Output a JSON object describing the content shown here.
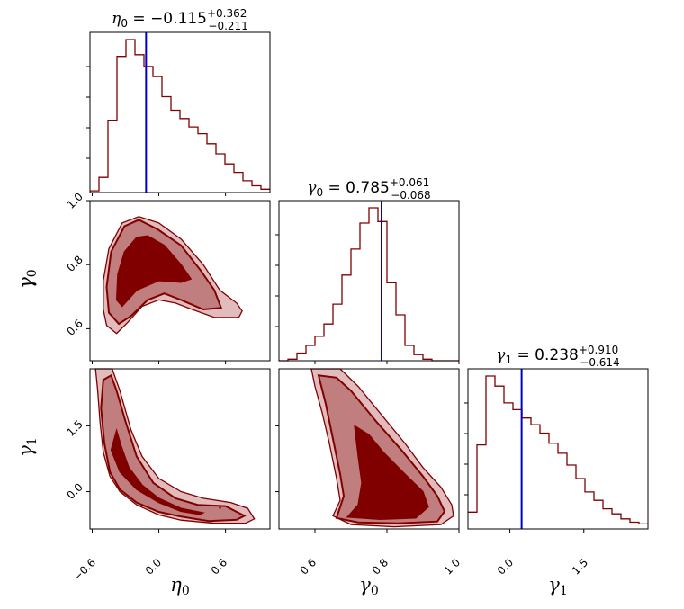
{
  "chart_data": {
    "type": "corner",
    "parameters": [
      {
        "symbol": "η",
        "sub": "0",
        "median": "−0.115",
        "plus": "+0.362",
        "minus": "−0.211",
        "ticks": [
          "−0.6",
          "0.0",
          "0.6"
        ]
      },
      {
        "symbol": "γ",
        "sub": "0",
        "median": "0.785",
        "plus": "+0.061",
        "minus": "−0.068",
        "ticks": [
          "0.6",
          "0.8",
          "1.0"
        ]
      },
      {
        "symbol": "γ",
        "sub": "1",
        "median": "0.238",
        "plus": "+0.910",
        "minus": "−0.614",
        "ticks": [
          "0.0",
          "1.5"
        ]
      }
    ],
    "ranges": {
      "eta0": [
        -0.62,
        1.0
      ],
      "gamma0": [
        0.5,
        1.0
      ],
      "gamma1": [
        -0.85,
        2.8
      ]
    },
    "truth_lines": {
      "eta0": -0.115,
      "gamma0": 0.785,
      "gamma1": 0.238
    },
    "histograms": {
      "eta0": {
        "edges_start": -0.62,
        "bin_width": 0.081,
        "counts": [
          0.01,
          0.09,
          0.43,
          0.81,
          0.91,
          0.82,
          0.75,
          0.69,
          0.57,
          0.49,
          0.44,
          0.39,
          0.35,
          0.29,
          0.23,
          0.17,
          0.12,
          0.07,
          0.04,
          0.02
        ]
      },
      "gamma0": {
        "edges_start": 0.5,
        "bin_width": 0.025,
        "counts": [
          0.0,
          0.01,
          0.05,
          0.1,
          0.16,
          0.24,
          0.37,
          0.56,
          0.73,
          0.9,
          1.0,
          0.91,
          0.51,
          0.3,
          0.1,
          0.04,
          0.01,
          0.0,
          0.0,
          0.0
        ]
      },
      "gamma1": {
        "edges_start": -0.85,
        "bin_width": 0.1825,
        "counts": [
          0.1,
          0.5,
          0.91,
          0.85,
          0.75,
          0.71,
          0.66,
          0.62,
          0.57,
          0.51,
          0.45,
          0.38,
          0.3,
          0.22,
          0.17,
          0.12,
          0.09,
          0.06,
          0.04,
          0.03
        ]
      }
    },
    "contours": {
      "eta0_gamma0": {
        "outer": [
          [
            -0.47,
            0.61
          ],
          [
            -0.5,
            0.66
          ],
          [
            -0.5,
            0.75
          ],
          [
            -0.45,
            0.85
          ],
          [
            -0.33,
            0.93
          ],
          [
            -0.18,
            0.95
          ],
          [
            0.0,
            0.93
          ],
          [
            0.2,
            0.88
          ],
          [
            0.4,
            0.8
          ],
          [
            0.55,
            0.72
          ],
          [
            0.7,
            0.68
          ],
          [
            0.75,
            0.655
          ],
          [
            0.72,
            0.635
          ],
          [
            0.5,
            0.635
          ],
          [
            0.3,
            0.66
          ],
          [
            0.15,
            0.68
          ],
          [
            0.0,
            0.69
          ],
          [
            -0.15,
            0.67
          ],
          [
            -0.28,
            0.62
          ],
          [
            -0.38,
            0.585
          ]
        ],
        "mid": [
          [
            -0.45,
            0.65
          ],
          [
            -0.47,
            0.73
          ],
          [
            -0.43,
            0.84
          ],
          [
            -0.31,
            0.92
          ],
          [
            -0.18,
            0.94
          ],
          [
            -0.01,
            0.91
          ],
          [
            0.2,
            0.86
          ],
          [
            0.38,
            0.78
          ],
          [
            0.5,
            0.72
          ],
          [
            0.56,
            0.665
          ],
          [
            0.4,
            0.66
          ],
          [
            0.2,
            0.69
          ],
          [
            0.05,
            0.71
          ],
          [
            -0.1,
            0.69
          ],
          [
            -0.25,
            0.64
          ],
          [
            -0.36,
            0.615
          ]
        ],
        "inner": [
          [
            -0.38,
            0.69
          ],
          [
            -0.37,
            0.77
          ],
          [
            -0.31,
            0.84
          ],
          [
            -0.2,
            0.885
          ],
          [
            -0.1,
            0.89
          ],
          [
            0.05,
            0.86
          ],
          [
            0.2,
            0.8
          ],
          [
            0.29,
            0.755
          ],
          [
            0.2,
            0.745
          ],
          [
            0.0,
            0.75
          ],
          [
            -0.2,
            0.72
          ],
          [
            -0.33,
            0.67
          ]
        ]
      },
      "eta0_gamma1": {
        "outer": [
          [
            -0.57,
            2.8
          ],
          [
            -0.55,
            2.3
          ],
          [
            -0.53,
            1.6
          ],
          [
            -0.5,
            0.9
          ],
          [
            -0.44,
            0.35
          ],
          [
            -0.35,
            0.0
          ],
          [
            -0.2,
            -0.3
          ],
          [
            0.0,
            -0.53
          ],
          [
            0.2,
            -0.65
          ],
          [
            0.5,
            -0.72
          ],
          [
            0.78,
            -0.72
          ],
          [
            0.86,
            -0.62
          ],
          [
            0.8,
            -0.38
          ],
          [
            0.65,
            -0.25
          ],
          [
            0.4,
            -0.15
          ],
          [
            0.2,
            0.0
          ],
          [
            0.0,
            0.3
          ],
          [
            -0.15,
            0.8
          ],
          [
            -0.25,
            1.4
          ],
          [
            -0.35,
            2.3
          ],
          [
            -0.42,
            2.8
          ]
        ],
        "mid": [
          [
            -0.5,
            2.55
          ],
          [
            -0.52,
            1.9
          ],
          [
            -0.49,
            1.1
          ],
          [
            -0.44,
            0.45
          ],
          [
            -0.35,
            0.05
          ],
          [
            -0.2,
            -0.25
          ],
          [
            0.0,
            -0.46
          ],
          [
            0.2,
            -0.57
          ],
          [
            0.45,
            -0.67
          ],
          [
            0.7,
            -0.64
          ],
          [
            0.77,
            -0.55
          ],
          [
            0.6,
            -0.33
          ],
          [
            0.35,
            -0.3
          ],
          [
            0.15,
            -0.15
          ],
          [
            -0.05,
            0.2
          ],
          [
            -0.2,
            0.8
          ],
          [
            -0.3,
            1.6
          ],
          [
            -0.38,
            2.3
          ],
          [
            -0.43,
            2.65
          ]
        ],
        "inner": [
          [
            -0.38,
            1.4
          ],
          [
            -0.43,
            0.95
          ],
          [
            -0.35,
            0.45
          ],
          [
            -0.2,
            0.05
          ],
          [
            0.0,
            -0.25
          ],
          [
            0.2,
            -0.45
          ],
          [
            0.37,
            -0.52
          ],
          [
            0.4,
            -0.48
          ],
          [
            0.2,
            -0.38
          ],
          [
            0.0,
            -0.15
          ],
          [
            -0.15,
            0.15
          ],
          [
            -0.27,
            0.55
          ],
          [
            -0.34,
            1.05
          ]
        ]
      },
      "gamma0_gamma1": {
        "outer": [
          [
            0.59,
            2.8
          ],
          [
            0.6,
            2.4
          ],
          [
            0.62,
            1.8
          ],
          [
            0.64,
            1.1
          ],
          [
            0.66,
            0.3
          ],
          [
            0.67,
            -0.2
          ],
          [
            0.65,
            -0.55
          ],
          [
            0.7,
            -0.75
          ],
          [
            0.82,
            -0.8
          ],
          [
            0.95,
            -0.75
          ],
          [
            0.985,
            -0.55
          ],
          [
            0.98,
            -0.3
          ],
          [
            0.95,
            0.1
          ],
          [
            0.9,
            0.55
          ],
          [
            0.85,
            1.1
          ],
          [
            0.78,
            1.8
          ],
          [
            0.72,
            2.4
          ],
          [
            0.67,
            2.8
          ]
        ],
        "mid": [
          [
            0.61,
            2.65
          ],
          [
            0.63,
            2.0
          ],
          [
            0.65,
            1.2
          ],
          [
            0.67,
            0.4
          ],
          [
            0.68,
            -0.1
          ],
          [
            0.66,
            -0.6
          ],
          [
            0.72,
            -0.7
          ],
          [
            0.83,
            -0.72
          ],
          [
            0.94,
            -0.68
          ],
          [
            0.96,
            -0.45
          ],
          [
            0.94,
            -0.1
          ],
          [
            0.9,
            0.35
          ],
          [
            0.84,
            0.95
          ],
          [
            0.77,
            1.6
          ],
          [
            0.7,
            2.3
          ],
          [
            0.66,
            2.6
          ]
        ],
        "inner": [
          [
            0.71,
            1.5
          ],
          [
            0.72,
            0.8
          ],
          [
            0.73,
            0.2
          ],
          [
            0.72,
            -0.3
          ],
          [
            0.69,
            -0.58
          ],
          [
            0.78,
            -0.63
          ],
          [
            0.88,
            -0.6
          ],
          [
            0.915,
            -0.35
          ],
          [
            0.9,
            0.0
          ],
          [
            0.85,
            0.4
          ],
          [
            0.79,
            0.9
          ],
          [
            0.75,
            1.3
          ]
        ]
      }
    }
  }
}
